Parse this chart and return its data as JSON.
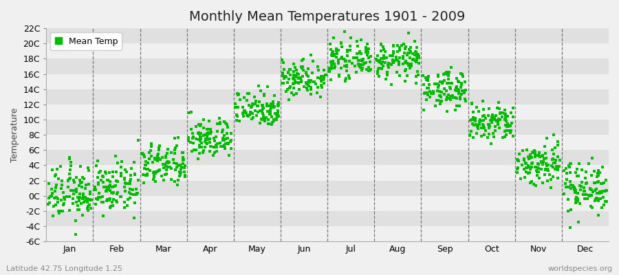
{
  "title": "Monthly Mean Temperatures 1901 - 2009",
  "ylabel": "Temperature",
  "subtitle_left": "Latitude 42.75 Longitude 1.25",
  "subtitle_right": "worldspecies.org",
  "legend_label": "Mean Temp",
  "ylim": [
    -6,
    22
  ],
  "ytick_labels": [
    "-6C",
    "-4C",
    "-2C",
    "0C",
    "2C",
    "4C",
    "6C",
    "8C",
    "10C",
    "12C",
    "14C",
    "16C",
    "18C",
    "20C",
    "22C"
  ],
  "ytick_values": [
    -6,
    -4,
    -2,
    0,
    2,
    4,
    6,
    8,
    10,
    12,
    14,
    16,
    18,
    20,
    22
  ],
  "month_labels": [
    "Jan",
    "Feb",
    "Mar",
    "Apr",
    "May",
    "Jun",
    "Jul",
    "Aug",
    "Sep",
    "Oct",
    "Nov",
    "Dec"
  ],
  "monthly_means": [
    0.3,
    1.0,
    4.0,
    7.5,
    11.5,
    15.5,
    17.8,
    17.8,
    14.0,
    9.5,
    4.2,
    1.2
  ],
  "monthly_stds": [
    1.8,
    1.6,
    1.4,
    1.3,
    1.2,
    1.2,
    1.1,
    1.2,
    1.2,
    1.3,
    1.5,
    1.7
  ],
  "n_years": 109,
  "dot_color": "#00BB00",
  "dot_size": 5,
  "bg_light": "#F0F0F0",
  "bg_dark": "#E0E0E0",
  "title_fontsize": 14,
  "axis_fontsize": 9,
  "tick_fontsize": 9,
  "legend_fontsize": 9,
  "grid_color": "#777777",
  "grid_linestyle": "--",
  "grid_linewidth": 0.9
}
